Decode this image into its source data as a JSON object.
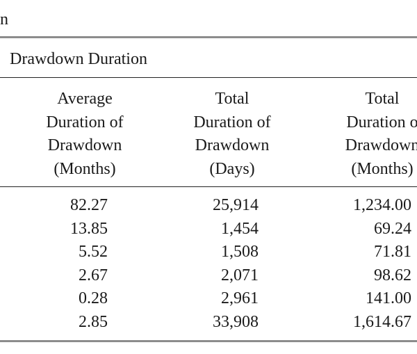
{
  "title_fragment": "n",
  "group_header": "Drawdown Duration",
  "columns": [
    {
      "lines": [
        "Average",
        "Duration of",
        "Drawdown",
        "(Months)"
      ]
    },
    {
      "lines": [
        "Total",
        "Duration of",
        "Drawdown",
        "(Days)"
      ]
    },
    {
      "lines": [
        "Total",
        "Duration o",
        "Drawdown",
        "(Months)"
      ]
    }
  ],
  "rows": [
    [
      "82.27",
      "25,914",
      "1,234.00"
    ],
    [
      "13.85",
      "1,454",
      "69.24"
    ],
    [
      "5.52",
      "1,508",
      "71.81"
    ],
    [
      "2.67",
      "2,071",
      "98.62"
    ],
    [
      "0.28",
      "2,961",
      "141.00"
    ],
    [
      "2.85",
      "33,908",
      "1,614.67"
    ]
  ]
}
